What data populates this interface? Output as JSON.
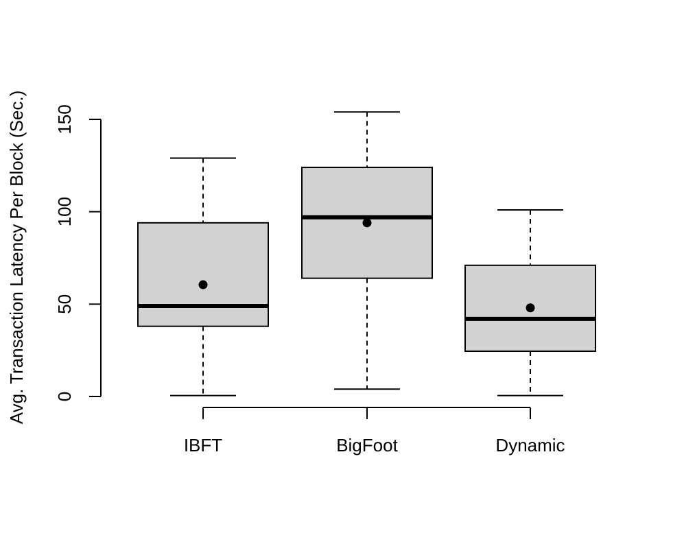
{
  "chart_data": {
    "type": "box",
    "ylabel": "Avg. Transaction Latency Per Block (Sec.)",
    "xlabel": "",
    "ylim": [
      0,
      150
    ],
    "yticks": [
      0,
      50,
      100,
      150
    ],
    "grid": false,
    "categories": [
      "IBFT",
      "BigFoot",
      "Dynamic"
    ],
    "boxes": [
      {
        "name": "IBFT",
        "whisker_low": 0.5,
        "q1": 38,
        "median": 49,
        "q3": 94,
        "whisker_high": 129,
        "mean": 60.5
      },
      {
        "name": "BigFoot",
        "whisker_low": 4,
        "q1": 64,
        "median": 97,
        "q3": 124,
        "whisker_high": 154,
        "mean": 94
      },
      {
        "name": "Dynamic",
        "whisker_low": 0.5,
        "q1": 24.5,
        "median": 42,
        "q3": 71,
        "whisker_high": 101,
        "mean": 48
      }
    ],
    "colors": {
      "box_fill": "#d3d3d3",
      "stroke": "#000000"
    }
  }
}
